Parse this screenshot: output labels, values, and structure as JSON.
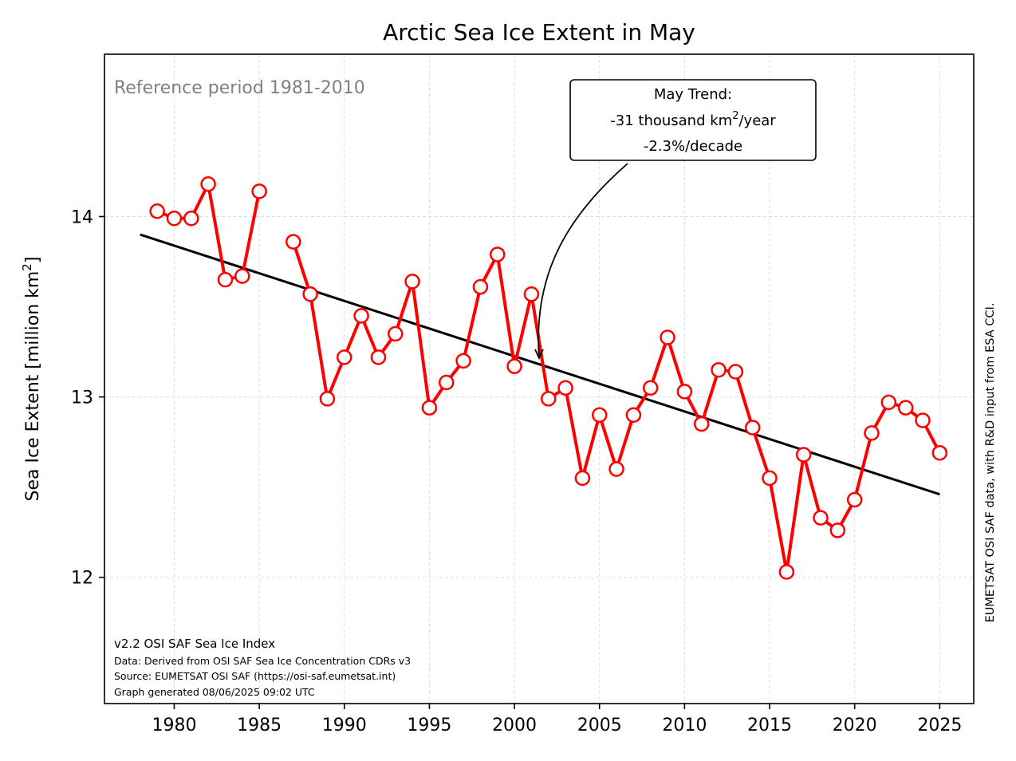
{
  "chart_data": {
    "type": "line",
    "title": "Arctic Sea Ice Extent in May",
    "xlabel": "",
    "ylabel": "Sea Ice Extent [million km²]",
    "ylabel_main": "Sea Ice Extent [million km",
    "ylabel_sup": "2",
    "ylabel_end": "]",
    "xlim": [
      1975.9,
      2027.0
    ],
    "ylim": [
      11.3,
      14.9
    ],
    "x_ticks": [
      1980,
      1985,
      1990,
      1995,
      2000,
      2005,
      2010,
      2015,
      2020,
      2025
    ],
    "y_ticks": [
      12,
      13,
      14
    ],
    "grid": true,
    "series": [
      {
        "color": "#ff0000",
        "marker": "open circle",
        "segments": [
          [
            [
              1979,
              14.03
            ],
            [
              1980,
              13.99
            ],
            [
              1981,
              13.99
            ],
            [
              1982,
              14.18
            ],
            [
              1983,
              13.65
            ],
            [
              1984,
              13.67
            ],
            [
              1985,
              14.14
            ]
          ],
          [
            [
              1987,
              13.86
            ],
            [
              1988,
              13.57
            ],
            [
              1989,
              12.99
            ],
            [
              1990,
              13.22
            ],
            [
              1991,
              13.45
            ],
            [
              1992,
              13.22
            ],
            [
              1993,
              13.35
            ],
            [
              1994,
              13.64
            ],
            [
              1995,
              12.94
            ],
            [
              1996,
              13.08
            ],
            [
              1997,
              13.2
            ],
            [
              1998,
              13.61
            ],
            [
              1999,
              13.79
            ],
            [
              2000,
              13.17
            ],
            [
              2001,
              13.57
            ],
            [
              2002,
              12.99
            ],
            [
              2003,
              13.05
            ],
            [
              2004,
              12.55
            ],
            [
              2005,
              12.9
            ],
            [
              2006,
              12.6
            ],
            [
              2007,
              12.9
            ],
            [
              2008,
              13.05
            ],
            [
              2009,
              13.33
            ],
            [
              2010,
              13.03
            ],
            [
              2011,
              12.85
            ],
            [
              2012,
              13.15
            ],
            [
              2013,
              13.14
            ],
            [
              2014,
              12.83
            ],
            [
              2015,
              12.55
            ],
            [
              2016,
              12.03
            ],
            [
              2017,
              12.68
            ],
            [
              2018,
              12.33
            ],
            [
              2019,
              12.26
            ],
            [
              2020,
              12.43
            ],
            [
              2021,
              12.8
            ],
            [
              2022,
              12.97
            ],
            [
              2023,
              12.94
            ],
            [
              2024,
              12.87
            ],
            [
              2025,
              12.69
            ]
          ]
        ]
      }
    ],
    "trend_line": {
      "color": "#000000",
      "x": [
        1978,
        2025
      ],
      "y": [
        13.9,
        12.46
      ]
    },
    "annotations": {
      "reference_period": "Reference period 1981-2010",
      "trend_box": {
        "line1": "May Trend:",
        "line2_prefix": "-31 thousand km",
        "line2_sup": "2",
        "line2_suffix": "/year",
        "line3": "-2.3%/decade",
        "arrow_target": [
          2001.5,
          13.22
        ]
      },
      "footnote_main": "v2.2 OSI SAF Sea Ice Index",
      "footnote_lines": [
        "Data: Derived from OSI SAF Sea Ice Concentration CDRs v3",
        "Source: EUMETSAT OSI SAF (https://osi-saf.eumetsat.int)",
        "Graph generated 08/06/2025 09:02 UTC"
      ],
      "side_note": "EUMETSAT OSI SAF data, with R&D input from ESA CCI."
    }
  }
}
